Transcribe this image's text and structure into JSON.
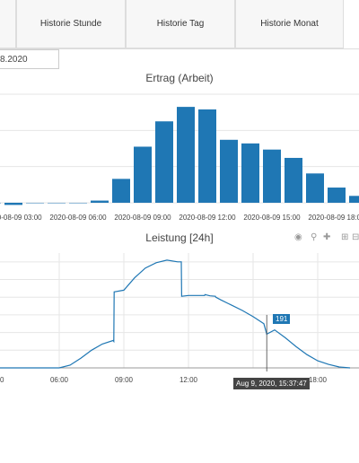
{
  "tabs": [
    {
      "label": ""
    },
    {
      "label": "Historie Stunde"
    },
    {
      "label": "Historie Tag"
    },
    {
      "label": "Historie Monat"
    }
  ],
  "date_input": {
    "value": "8.2020"
  },
  "toolbar": {
    "icons": [
      "camera-icon",
      "zoom-icon",
      "pan-icon",
      "zoom-in-icon",
      "zoom-out-icon"
    ]
  },
  "colors": {
    "accent": "#1f77b4",
    "grid": "#e6e6e6",
    "tooltip_bg": "#444444"
  },
  "chart_data": [
    {
      "type": "bar",
      "title": "Ertrag (Arbeit)",
      "x": [
        "2020-08-09 02:00",
        "2020-08-09 03:00",
        "2020-08-09 04:00",
        "2020-08-09 05:00",
        "2020-08-09 06:00",
        "2020-08-09 07:00",
        "2020-08-09 08:00",
        "2020-08-09 09:00",
        "2020-08-09 10:00",
        "2020-08-09 11:00",
        "2020-08-09 12:00",
        "2020-08-09 13:00",
        "2020-08-09 14:00",
        "2020-08-09 15:00",
        "2020-08-09 16:00",
        "2020-08-09 17:00",
        "2020-08-09 18:00",
        "2020-08-09 19:00"
      ],
      "values": [
        0,
        -0.6,
        0,
        0,
        0,
        0.6,
        6.6,
        15.5,
        22.5,
        26.5,
        25.8,
        17.4,
        16.4,
        14.7,
        12.4,
        8.1,
        4.2,
        1.9
      ],
      "tick_labels": [
        "2020-08-09 03:00",
        "2020-08-09 06:00",
        "2020-08-09 09:00",
        "2020-08-09 12:00",
        "2020-08-09 15:00",
        "2020-08-09 18:00"
      ],
      "ylim": [
        -1,
        30
      ],
      "grid": true
    },
    {
      "type": "line",
      "title": "Leistung [24h]",
      "tick_labels": [
        "0",
        "06:00",
        "09:00",
        "12:00",
        "18:00"
      ],
      "hover_value": "191",
      "tooltip": "Aug 9, 2020, 15:37:47",
      "x": [
        "03:00",
        "06:00",
        "06:30",
        "07:00",
        "07:30",
        "08:00",
        "08:30",
        "08:32",
        "08:33",
        "09:00",
        "09:30",
        "10:00",
        "10:30",
        "11:00",
        "11:30",
        "11:40",
        "11:41",
        "12:00",
        "12:30",
        "12:45",
        "12:46",
        "13:00",
        "13:15",
        "13:16",
        "13:30",
        "14:00",
        "14:30",
        "15:00",
        "15:30",
        "15:38",
        "16:00",
        "16:30",
        "17:00",
        "17:30",
        "18:00",
        "18:30",
        "19:00",
        "19:30"
      ],
      "y": [
        0,
        0,
        15,
        55,
        100,
        135,
        155,
        150,
        430,
        440,
        510,
        565,
        595,
        610,
        600,
        600,
        405,
        410,
        410,
        410,
        415,
        408,
        405,
        400,
        385,
        355,
        325,
        290,
        250,
        191,
        215,
        170,
        120,
        75,
        40,
        20,
        5,
        0
      ],
      "ylim": [
        0,
        650
      ],
      "grid": true
    }
  ]
}
